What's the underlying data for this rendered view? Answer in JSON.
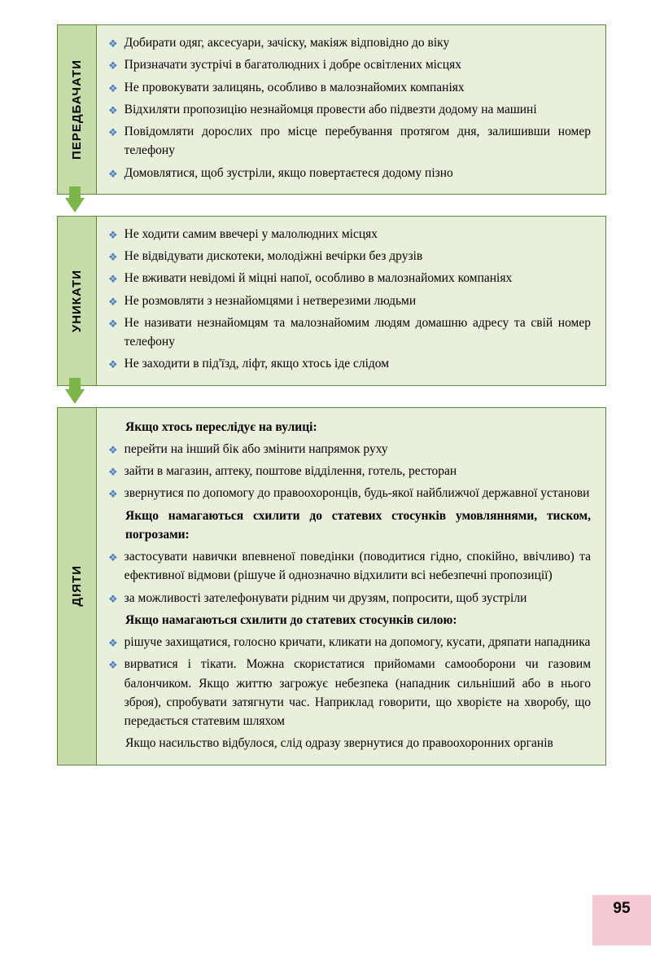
{
  "sections": [
    {
      "label": "ПЕРЕДБАЧАТИ",
      "items": [
        {
          "type": "bullet",
          "text": "Добирати одяг, аксесуари, зачіску, макіяж відповідно до віку"
        },
        {
          "type": "bullet",
          "text": "Призначати зустрічі в багатолюдних і добре освітлених місцях"
        },
        {
          "type": "bullet",
          "text": "Не провокувати залицянь, особливо в малознайомих компаніях"
        },
        {
          "type": "bullet",
          "text": "Відхиляти пропозицію незнайомця провести або підвезти додому на машині"
        },
        {
          "type": "bullet",
          "text": "Повідомляти дорослих про місце перебування протягом дня, залишивши номер телефону"
        },
        {
          "type": "bullet",
          "text": "Домовлятися, щоб зустріли, якщо повертаєтеся додому пізно"
        }
      ]
    },
    {
      "label": "УНИКАТИ",
      "items": [
        {
          "type": "bullet",
          "text": "Не ходити самим ввечері у малолюдних місцях"
        },
        {
          "type": "bullet",
          "text": "Не відвідувати дискотеки, молодіжні вечірки без друзів"
        },
        {
          "type": "bullet",
          "text": "Не вживати невідомі й міцні напої, особливо в малознайомих компаніях"
        },
        {
          "type": "bullet",
          "text": "Не розмовляти з незнайомцями і нетверезими людьми"
        },
        {
          "type": "bullet",
          "text": "Не називати незнайомцям та малознайомим людям домашню адресу та свій номер телефону"
        },
        {
          "type": "bullet",
          "text": "Не заходити в під'їзд, ліфт, якщо хтось іде слідом"
        }
      ]
    },
    {
      "label": "ДІЯТИ",
      "items": [
        {
          "type": "bold",
          "text": "Якщо хтось переслідує на вулиці:"
        },
        {
          "type": "bullet",
          "text": "перейти на інший бік або змінити напрямок руху"
        },
        {
          "type": "bullet",
          "text": "зайти в магазин, аптеку, поштове відділення, готель, ресторан"
        },
        {
          "type": "bullet",
          "text": "звернутися по допомогу до правоохоронців, будь-якої найближчої державної установи"
        },
        {
          "type": "bold",
          "text": "Якщо намагаються схилити до статевих стосунків умовляннями, тиском, погрозами:"
        },
        {
          "type": "bullet",
          "text": "застосувати навички впевненої поведінки (поводитися гідно, спокійно, ввічливо) та ефективної відмови (рішуче й однозначно відхилити всі небезпечні пропозиції)"
        },
        {
          "type": "bullet",
          "text": "за можливості зателефонувати рідним чи друзям, попросити, щоб зустріли"
        },
        {
          "type": "bold",
          "text": "Якщо намагаються схилити до статевих стосунків силою:"
        },
        {
          "type": "bullet",
          "text": "рішуче захищатися, голосно кричати, кликати на допомогу, кусати, дряпати нападника"
        },
        {
          "type": "bullet",
          "text": "вирватися і тікати. Можна скористатися прийомами самооборони чи газовим балончиком. Якщо життю загрожує небезпека (нападник сильніший або в нього зброя), спробувати затягнути час. Наприклад говорити, що хворієте на хворобу, що передається статевим шляхом"
        },
        {
          "type": "bold",
          "text": "Якщо насильство відбулося, слід одразу звернутися до правоохоронних органів"
        }
      ]
    }
  ],
  "pageNumber": "95",
  "colors": {
    "labelBg": "#c5dba8",
    "contentBg": "#e8f0db",
    "border": "#5a8a3a",
    "bullet": "#4a7fc4",
    "arrow": "#7ab648",
    "pageNumBg": "#f5c9d4"
  }
}
